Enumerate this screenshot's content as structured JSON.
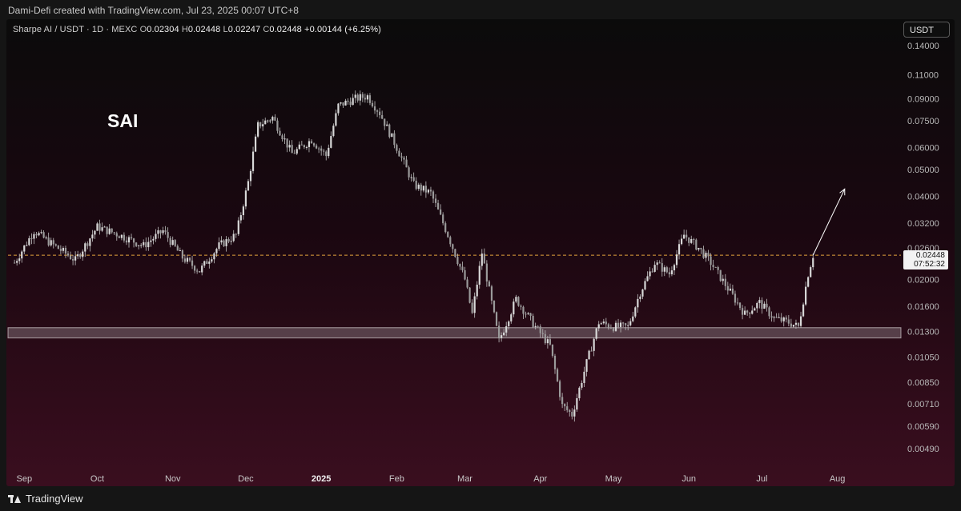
{
  "attribution": "Dami-Defi created with TradingView.com, Jul 23, 2025 00:07 UTC+8",
  "legend": {
    "symbol": "Sharpe AI / USDT · 1D · MEXC",
    "o_label": "O",
    "o_value": "0.02304",
    "h_label": "H",
    "h_value": "0.02448",
    "l_label": "L",
    "l_value": "0.02247",
    "c_label": "C",
    "c_value": "0.02448",
    "change": "+0.00144 (+6.25%)"
  },
  "currency_button": "USDT",
  "ticker_label": "SAI",
  "last_price": {
    "value": "0.02448",
    "countdown": "07:52:32"
  },
  "footer_brand": "TradingView",
  "colors": {
    "candle": "#d8d8d8",
    "wick": "#bfbfbf",
    "support_zone": "#ffffff",
    "dashed_line": "#e3a33c",
    "projection_arrow": "#ffffff"
  },
  "chart_data": {
    "type": "candlestick",
    "y_scale": "log",
    "ylim": [
      0.0044,
      0.155
    ],
    "y_ticks": [
      "0.14000",
      "0.11000",
      "0.09000",
      "0.07500",
      "0.06000",
      "0.05000",
      "0.04000",
      "0.03200",
      "0.02600",
      "0.02000",
      "0.01600",
      "0.01300",
      "0.01050",
      "0.00850",
      "0.00710",
      "0.00590",
      "0.00490"
    ],
    "x_ticks": [
      "Sep",
      "Oct",
      "Nov",
      "Dec",
      "2025",
      "Feb",
      "Mar",
      "Apr",
      "May",
      "Jun",
      "Jul",
      "Aug"
    ],
    "x_ticks_bold": [
      "2025"
    ],
    "price_trajectory": [
      {
        "date": "2024-08-28",
        "close": 0.023
      },
      {
        "date": "2024-09-05",
        "close": 0.03
      },
      {
        "date": "2024-09-12",
        "close": 0.027
      },
      {
        "date": "2024-09-22",
        "close": 0.0235
      },
      {
        "date": "2024-10-01",
        "close": 0.031
      },
      {
        "date": "2024-10-10",
        "close": 0.029
      },
      {
        "date": "2024-10-20",
        "close": 0.0265
      },
      {
        "date": "2024-10-28",
        "close": 0.03
      },
      {
        "date": "2024-11-05",
        "close": 0.024
      },
      {
        "date": "2024-11-12",
        "close": 0.0215
      },
      {
        "date": "2024-11-20",
        "close": 0.0265
      },
      {
        "date": "2024-11-27",
        "close": 0.029
      },
      {
        "date": "2024-12-02",
        "close": 0.045
      },
      {
        "date": "2024-12-06",
        "close": 0.072
      },
      {
        "date": "2024-12-12",
        "close": 0.077
      },
      {
        "date": "2024-12-20",
        "close": 0.057
      },
      {
        "date": "2024-12-28",
        "close": 0.064
      },
      {
        "date": "2025-01-03",
        "close": 0.056
      },
      {
        "date": "2025-01-08",
        "close": 0.085
      },
      {
        "date": "2025-01-15",
        "close": 0.09
      },
      {
        "date": "2025-01-20",
        "close": 0.092
      },
      {
        "date": "2025-01-25",
        "close": 0.08
      },
      {
        "date": "2025-02-01",
        "close": 0.06
      },
      {
        "date": "2025-02-08",
        "close": 0.044
      },
      {
        "date": "2025-02-15",
        "close": 0.041
      },
      {
        "date": "2025-02-22",
        "close": 0.029
      },
      {
        "date": "2025-03-01",
        "close": 0.02
      },
      {
        "date": "2025-03-04",
        "close": 0.015
      },
      {
        "date": "2025-03-08",
        "close": 0.025
      },
      {
        "date": "2025-03-15",
        "close": 0.012
      },
      {
        "date": "2025-03-22",
        "close": 0.017
      },
      {
        "date": "2025-03-30",
        "close": 0.0135
      },
      {
        "date": "2025-04-05",
        "close": 0.0115
      },
      {
        "date": "2025-04-10",
        "close": 0.007
      },
      {
        "date": "2025-04-14",
        "close": 0.0065
      },
      {
        "date": "2025-04-20",
        "close": 0.01
      },
      {
        "date": "2025-04-25",
        "close": 0.014
      },
      {
        "date": "2025-05-01",
        "close": 0.0135
      },
      {
        "date": "2025-05-07",
        "close": 0.0135
      },
      {
        "date": "2025-05-12",
        "close": 0.018
      },
      {
        "date": "2025-05-18",
        "close": 0.023
      },
      {
        "date": "2025-05-24",
        "close": 0.021
      },
      {
        "date": "2025-05-30",
        "close": 0.029
      },
      {
        "date": "2025-06-05",
        "close": 0.026
      },
      {
        "date": "2025-06-10",
        "close": 0.023
      },
      {
        "date": "2025-06-18",
        "close": 0.018
      },
      {
        "date": "2025-06-24",
        "close": 0.015
      },
      {
        "date": "2025-06-30",
        "close": 0.0165
      },
      {
        "date": "2025-07-06",
        "close": 0.0145
      },
      {
        "date": "2025-07-12",
        "close": 0.014
      },
      {
        "date": "2025-07-16",
        "close": 0.0135
      },
      {
        "date": "2025-07-20",
        "close": 0.021
      },
      {
        "date": "2025-07-22",
        "close": 0.02448
      }
    ],
    "support_zone": {
      "low": 0.0123,
      "high": 0.0134
    },
    "horizontal_line": {
      "value": 0.02448,
      "style": "dashed"
    },
    "arrow": {
      "from": {
        "date": "2025-07-22",
        "value": 0.02448
      },
      "to": {
        "date": "2025-08-04",
        "value": 0.0425
      }
    }
  }
}
